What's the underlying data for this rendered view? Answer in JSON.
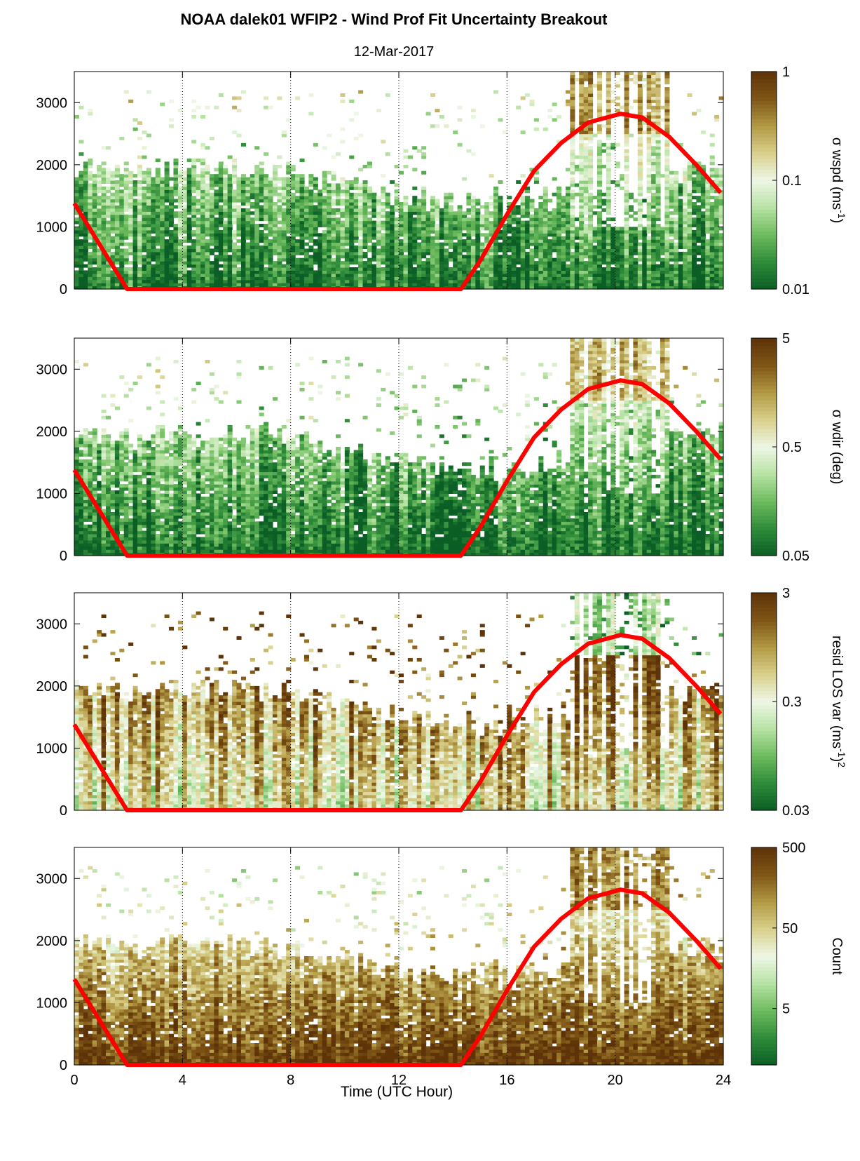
{
  "figure": {
    "title": "NOAA dalek01 WFIP2 - Wind Prof Fit Uncertainty Breakout",
    "subtitle": "12-Mar-2017",
    "xlabel": "Time (UTC Hour)"
  },
  "chart_data": [
    {
      "type": "heatmap",
      "title": "NOAA dalek01 WFIP2 - Wind Prof Fit Uncertainty Breakout",
      "subtitle": "12-Mar-2017",
      "xlim": [
        0,
        24
      ],
      "ylim": [
        0,
        3500
      ],
      "xticks": [
        "0",
        "4",
        "8",
        "12",
        "16",
        "20",
        "24"
      ],
      "yticks": [
        "0",
        "1000",
        "2000",
        "3000"
      ],
      "colorbar": {
        "label": "σ wspd (ms",
        "label_sup": "-1",
        "label_end": ")",
        "scale": "log",
        "range": [
          0.01,
          1
        ],
        "ticks": [
          "1",
          "0.1",
          "0.01"
        ]
      },
      "pattern": {
        "min_level": 0.06,
        "max_level": 0.55,
        "high_patch": 0.65,
        "vertical_streaks": 0.35
      },
      "red_line": {
        "description": "solar overlay",
        "x": [
          0,
          1.95,
          14.3,
          15.0,
          16.0,
          17.0,
          18.0,
          19.0,
          20.2,
          21.0,
          22.0,
          23.0,
          23.9
        ],
        "y": [
          1380,
          0,
          0,
          450,
          1200,
          1900,
          2350,
          2680,
          2820,
          2760,
          2450,
          2000,
          1550
        ]
      }
    },
    {
      "type": "heatmap",
      "xlim": [
        0,
        24
      ],
      "ylim": [
        0,
        3500
      ],
      "xticks": [
        "0",
        "4",
        "8",
        "12",
        "16",
        "20",
        "24"
      ],
      "yticks": [
        "0",
        "1000",
        "2000",
        "3000"
      ],
      "colorbar": {
        "label": "σ wdir (deg)",
        "label_sup": "",
        "label_end": "",
        "scale": "log",
        "range": [
          0.05,
          5
        ],
        "ticks": [
          "5",
          "0.5",
          "0.05"
        ]
      },
      "pattern": {
        "min_level": 0.03,
        "max_level": 0.5,
        "high_patch": 0.6,
        "vertical_streaks": 0.3
      },
      "red_line": {
        "description": "solar overlay",
        "x": [
          0,
          1.95,
          14.3,
          15.0,
          16.0,
          17.0,
          18.0,
          19.0,
          20.2,
          21.0,
          22.0,
          23.0,
          23.9
        ],
        "y": [
          1380,
          0,
          0,
          450,
          1200,
          1900,
          2350,
          2680,
          2820,
          2760,
          2450,
          2000,
          1550
        ]
      }
    },
    {
      "type": "heatmap",
      "xlim": [
        0,
        24
      ],
      "ylim": [
        0,
        3500
      ],
      "xticks": [
        "0",
        "4",
        "8",
        "12",
        "16",
        "20",
        "24"
      ],
      "yticks": [
        "0",
        "1000",
        "2000",
        "3000"
      ],
      "colorbar": {
        "label": "resid LOS var (ms",
        "label_sup": "-1",
        "label_end": ")",
        "label_sup2": "2",
        "scale": "log",
        "range": [
          0.03,
          3
        ],
        "ticks": [
          "3",
          "0.3",
          "0.03"
        ]
      },
      "pattern": {
        "min_level": 0.55,
        "max_level": 0.95,
        "high_patch": 0.25,
        "vertical_streaks": 0.5
      },
      "red_line": {
        "description": "solar overlay",
        "x": [
          0,
          1.95,
          14.3,
          15.0,
          16.0,
          17.0,
          18.0,
          19.0,
          20.2,
          21.0,
          22.0,
          23.0,
          23.9
        ],
        "y": [
          1380,
          0,
          0,
          450,
          1200,
          1900,
          2350,
          2680,
          2820,
          2760,
          2450,
          2000,
          1550
        ]
      }
    },
    {
      "type": "heatmap",
      "xlim": [
        0,
        24
      ],
      "ylim": [
        0,
        3500
      ],
      "xticks": [
        "0",
        "4",
        "8",
        "12",
        "16",
        "20",
        "24"
      ],
      "yticks": [
        "0",
        "1000",
        "2000",
        "3000"
      ],
      "xlabel": "Time (UTC Hour)",
      "colorbar": {
        "label": "Count",
        "label_sup": "",
        "label_end": "",
        "scale": "log",
        "range": [
          1,
          500
        ],
        "ticks": [
          "500",
          "50",
          "5"
        ]
      },
      "pattern": {
        "min_level": 0.97,
        "max_level": 0.35,
        "high_patch": 0.75,
        "vertical_streaks": 0.2
      },
      "red_line": {
        "description": "solar overlay",
        "x": [
          0,
          1.95,
          14.3,
          15.0,
          16.0,
          17.0,
          18.0,
          19.0,
          20.2,
          21.0,
          22.0,
          23.0,
          23.9
        ],
        "y": [
          1380,
          0,
          0,
          450,
          1200,
          1900,
          2350,
          2680,
          2820,
          2760,
          2450,
          2000,
          1550
        ]
      }
    }
  ],
  "colors": {
    "colormap": [
      "#0b5e25",
      "#2f8c3a",
      "#6dbb5e",
      "#b7e2a4",
      "#eef7e6",
      "#d9d08c",
      "#b29a45",
      "#7f5616",
      "#5e3308"
    ],
    "red_line": "#ff0000"
  }
}
